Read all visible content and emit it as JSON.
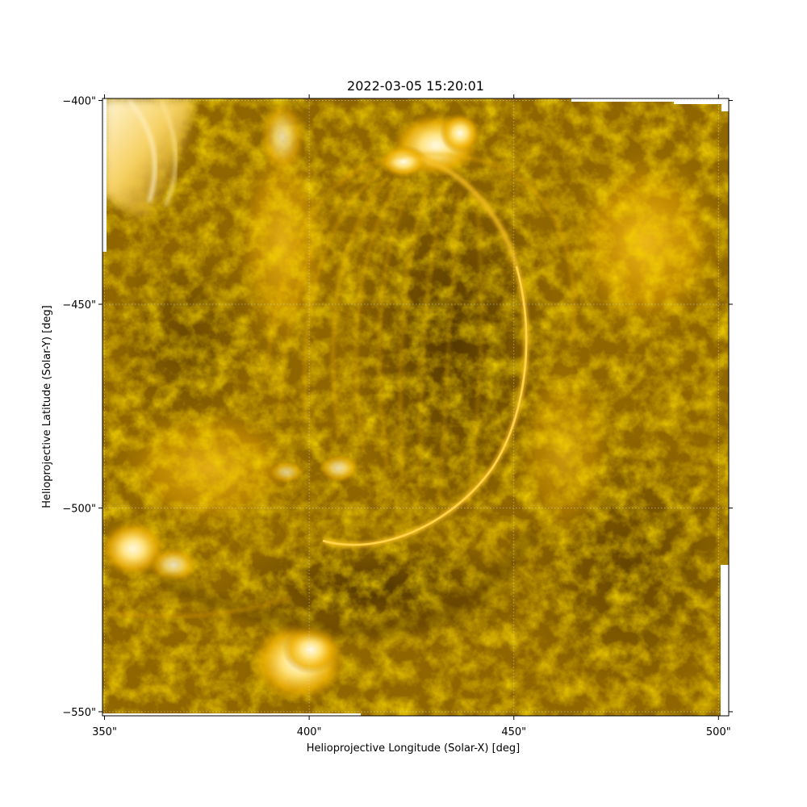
{
  "figure": {
    "title": "2022-03-05 15:20:01",
    "xlabel": "Helioprojective Longitude (Solar-X) [deg]",
    "ylabel": "Helioprojective Latitude (Solar-Y) [deg]"
  },
  "axes": {
    "x_ticks": [
      {
        "value": 350,
        "label": "350\""
      },
      {
        "value": 400,
        "label": "400\""
      },
      {
        "value": 450,
        "label": "450\""
      },
      {
        "value": 500,
        "label": "500\""
      }
    ],
    "y_ticks": [
      {
        "value": -400,
        "label": "−400\""
      },
      {
        "value": -450,
        "label": "−450\""
      },
      {
        "value": -500,
        "label": "−500\""
      },
      {
        "value": -550,
        "label": "−550\""
      }
    ],
    "xlim": [
      349.5,
      502.5
    ],
    "ylim": [
      -551,
      -399.5
    ],
    "grid": true
  },
  "colors": {
    "colormap_dark": "#2a1a00",
    "colormap_mid": "#8a6200",
    "colormap_bright": "#f5b400",
    "colormap_white": "#fff8e0"
  }
}
